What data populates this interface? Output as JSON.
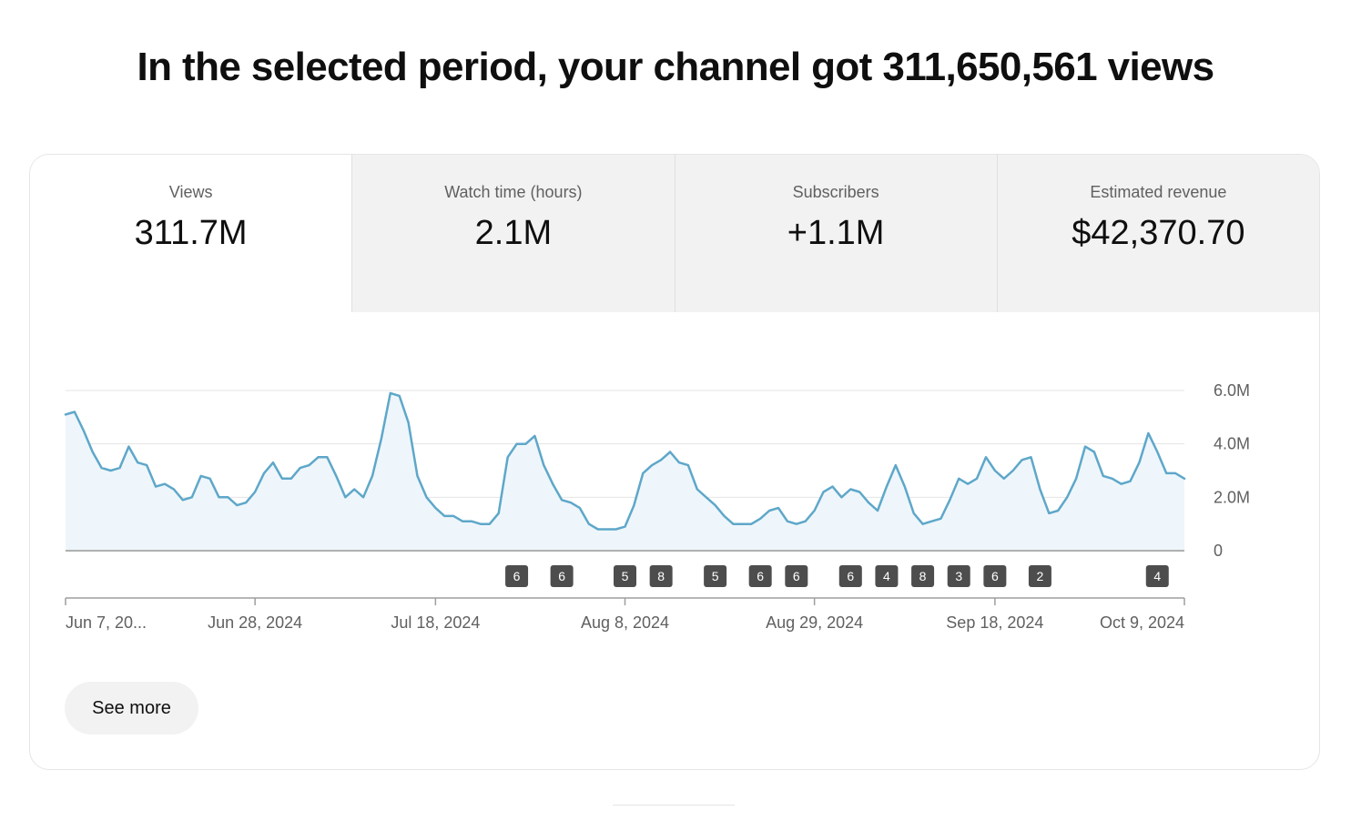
{
  "headline": "In the selected period, your channel got 311,650,561 views",
  "tabs": [
    {
      "label": "Views",
      "value": "311.7M",
      "active": true
    },
    {
      "label": "Watch time (hours)",
      "value": "2.1M",
      "active": false
    },
    {
      "label": "Subscribers",
      "value": "+1.1M",
      "active": false
    },
    {
      "label": "Estimated revenue",
      "value": "$42,370.70",
      "active": false
    }
  ],
  "see_more_label": "See more",
  "colors": {
    "line": "#5ea7c9",
    "fill": "#eef6fb",
    "badge": "#4d4d4d",
    "grid": "#e5e5e5"
  },
  "chart_data": {
    "type": "area",
    "x_range": [
      "2024-06-07",
      "2024-10-09"
    ],
    "ylim": [
      0,
      6000000
    ],
    "yticks": [
      {
        "value": 0,
        "label": "0"
      },
      {
        "value": 2000000,
        "label": "2.0M"
      },
      {
        "value": 4000000,
        "label": "4.0M"
      },
      {
        "value": 6000000,
        "label": "6.0M"
      }
    ],
    "xticks": [
      {
        "date": "2024-06-07",
        "label": "Jun 7, 20..."
      },
      {
        "date": "2024-06-28",
        "label": "Jun 28, 2024"
      },
      {
        "date": "2024-07-18",
        "label": "Jul 18, 2024"
      },
      {
        "date": "2024-08-08",
        "label": "Aug 8, 2024"
      },
      {
        "date": "2024-08-29",
        "label": "Aug 29, 2024"
      },
      {
        "date": "2024-09-18",
        "label": "Sep 18, 2024"
      },
      {
        "date": "2024-10-09",
        "label": "Oct 9, 2024"
      }
    ],
    "series": [
      {
        "values": [
          5100000,
          5200000,
          4500000,
          3700000,
          3100000,
          3000000,
          3100000,
          3900000,
          3300000,
          3200000,
          2400000,
          2500000,
          2300000,
          1900000,
          2000000,
          2800000,
          2700000,
          2000000,
          2000000,
          1700000,
          1800000,
          2200000,
          2900000,
          3300000,
          2700000,
          2700000,
          3100000,
          3200000,
          3500000,
          3500000,
          2800000,
          2000000,
          2300000,
          2000000,
          2800000,
          4200000,
          5900000,
          5800000,
          4800000,
          2800000,
          2000000,
          1600000,
          1300000,
          1300000,
          1100000,
          1100000,
          1000000,
          1000000,
          1400000,
          3500000,
          4000000,
          4000000,
          4300000,
          3200000,
          2500000,
          1900000,
          1800000,
          1600000,
          1000000,
          800000,
          800000,
          800000,
          900000,
          1700000,
          2900000,
          3200000,
          3400000,
          3700000,
          3300000,
          3200000,
          2300000,
          2000000,
          1700000,
          1300000,
          1000000,
          1000000,
          1000000,
          1200000,
          1500000,
          1600000,
          1100000,
          1000000,
          1100000,
          1500000,
          2200000,
          2400000,
          2000000,
          2300000,
          2200000,
          1800000,
          1500000,
          2400000,
          3200000,
          2400000,
          1400000,
          1000000,
          1100000,
          1200000,
          1900000,
          2700000,
          2500000,
          2700000,
          3500000,
          3000000,
          2700000,
          3000000,
          3400000,
          3500000,
          2300000,
          1400000,
          1500000,
          2000000,
          2700000,
          3900000,
          3700000,
          2800000,
          2700000,
          2500000,
          2600000,
          3300000,
          4400000,
          3700000,
          2900000,
          2900000,
          2700000
        ]
      }
    ],
    "markers": [
      {
        "date": "2024-07-27",
        "label": "6"
      },
      {
        "date": "2024-08-01",
        "label": "6"
      },
      {
        "date": "2024-08-08",
        "label": "5"
      },
      {
        "date": "2024-08-12",
        "label": "8"
      },
      {
        "date": "2024-08-18",
        "label": "5"
      },
      {
        "date": "2024-08-23",
        "label": "6"
      },
      {
        "date": "2024-08-27",
        "label": "6"
      },
      {
        "date": "2024-09-02",
        "label": "6"
      },
      {
        "date": "2024-09-06",
        "label": "4"
      },
      {
        "date": "2024-09-10",
        "label": "8"
      },
      {
        "date": "2024-09-14",
        "label": "3"
      },
      {
        "date": "2024-09-18",
        "label": "6"
      },
      {
        "date": "2024-09-23",
        "label": "2"
      },
      {
        "date": "2024-10-06",
        "label": "4"
      }
    ]
  }
}
